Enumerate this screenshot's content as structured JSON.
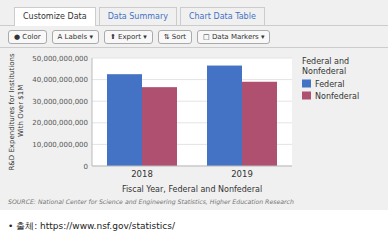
{
  "tabs": [
    "Customize Data",
    "Data Summary",
    "Chart Data Table"
  ],
  "buttons": [
    "● Color",
    "A Labels ▾",
    "⬆ Export ▾",
    "⇅ Sort",
    "□ Data Markers ▾"
  ],
  "source": "SOURCE: National Center for Science and Engineering Statistics, Higher Education Research",
  "footer": "• 출체:  https://www.nsf.gov/statistics/",
  "chart_data": {
    "type": "bar",
    "categories": [
      "2018",
      "2019"
    ],
    "series": [
      {
        "name": "Federal",
        "color": "#4472c4",
        "values": [
          42500000000,
          46500000000
        ]
      },
      {
        "name": "Nonfederal",
        "color": "#b05070",
        "values": [
          36500000000,
          39000000000
        ]
      }
    ],
    "xlabel": "Fiscal Year, Federal and Nonfederal",
    "ylabel": "R&D Expenditures for Institutions With Over $1M",
    "legend_title": "Federal and\nNonfederal",
    "legend": "right",
    "ylim": [
      0,
      50000000000
    ],
    "yticks": [
      0,
      {
        "value": 10000000000,
        "label": "10,000,000,000"
      },
      {
        "value": 20000000000,
        "label": "20,000,000,000"
      },
      {
        "value": 30000000000,
        "label": "30,000,000,000"
      },
      {
        "value": 40000000000,
        "label": "40,000,000,000"
      },
      {
        "value": 50000000000,
        "label": "50,000,000,000"
      }
    ],
    "grid": true
  }
}
